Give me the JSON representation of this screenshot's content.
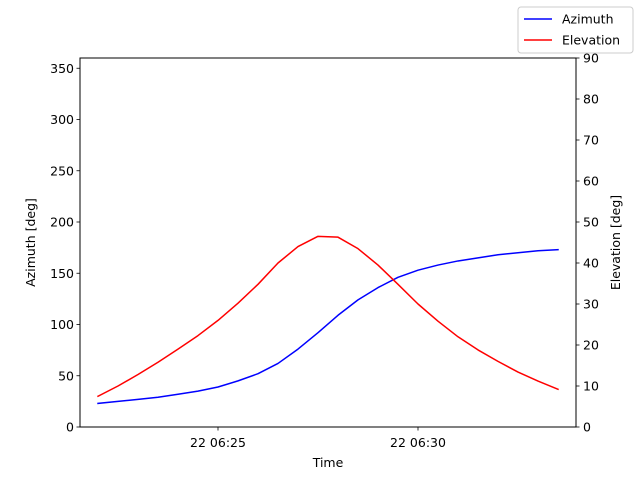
{
  "chart_data": {
    "type": "line",
    "xlabel": "Time",
    "ylabel_left": "Azimuth [deg]",
    "ylabel_right": "Elevation [deg]",
    "x_ticks": [
      {
        "label": "22 06:25",
        "t": 5
      },
      {
        "label": "22 06:30",
        "t": 10
      }
    ],
    "xlim": [
      1.55,
      13.95
    ],
    "ylim_left": [
      0,
      360
    ],
    "ylim_right": [
      0,
      90
    ],
    "yticks_left": [
      0,
      50,
      100,
      150,
      200,
      250,
      300,
      350
    ],
    "yticks_right": [
      0,
      10,
      20,
      30,
      40,
      50,
      60,
      70,
      80,
      90
    ],
    "x_unit": "minutes after 06:20 on day 22",
    "legend_position": "top-right",
    "grid": false,
    "series": [
      {
        "name": "Azimuth",
        "axis": "left",
        "color": "#0000ff",
        "x": [
          2.0,
          2.5,
          3.0,
          3.5,
          4.0,
          4.5,
          5.0,
          5.5,
          6.0,
          6.5,
          7.0,
          7.5,
          8.0,
          8.5,
          9.0,
          9.5,
          10.0,
          10.5,
          11.0,
          11.5,
          12.0,
          12.5,
          13.0,
          13.5
        ],
        "values": [
          23,
          25,
          27,
          29,
          32,
          35,
          39,
          45,
          52,
          62,
          76,
          92,
          109,
          124,
          136,
          146,
          153,
          158,
          162,
          165,
          168,
          170,
          172,
          173
        ]
      },
      {
        "name": "Elevation",
        "axis": "right",
        "color": "#ff0000",
        "x": [
          2.0,
          2.5,
          3.0,
          3.5,
          4.0,
          4.5,
          5.0,
          5.5,
          6.0,
          6.5,
          7.0,
          7.5,
          8.0,
          8.5,
          9.0,
          9.5,
          10.0,
          10.5,
          11.0,
          11.5,
          12.0,
          12.5,
          13.0,
          13.5
        ],
        "values": [
          7.5,
          10,
          12.8,
          15.8,
          19,
          22.3,
          26,
          30.2,
          34.8,
          40,
          44,
          46.5,
          46.3,
          43.5,
          39.5,
          34.8,
          30,
          25.8,
          22,
          18.8,
          16,
          13.4,
          11.2,
          9.2
        ]
      }
    ]
  }
}
